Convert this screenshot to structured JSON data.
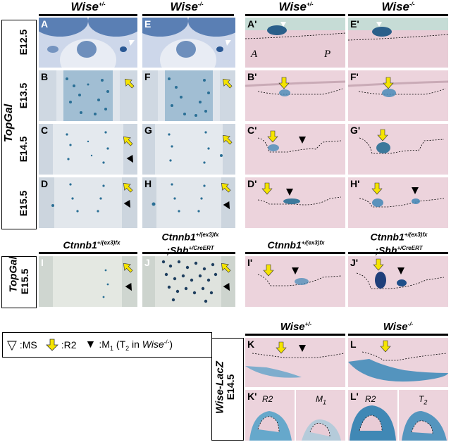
{
  "headers": {
    "wise_het": "Wise",
    "wise_het_sup": "+/-",
    "wise_ko": "Wise",
    "wise_ko_sup": "-/-",
    "ctnnb1": "Ctnnb1",
    "ctnnb1_sup": "+/(ex3)fx",
    "ctnnb1_shh_line1": "Ctnnb1",
    "ctnnb1_shh_line1_sup": "+/(ex3)fx",
    "ctnnb1_shh_line2": ";Shh",
    "ctnnb1_shh_line2_sup": "+/CreERT"
  },
  "row_labels": {
    "topgal_main": "TopGal",
    "e125": "E12.5",
    "e135": "E13.5",
    "e145": "E14.5",
    "e155": "E15.5",
    "topgal_2": "TopGal",
    "e155_b": "E15.5",
    "wise_lacz": "Wise-LacZ",
    "e145_b": "E14.5"
  },
  "panel_labels": {
    "A": "A",
    "B": "B",
    "C": "C",
    "D": "D",
    "E": "E",
    "F": "F",
    "G": "G",
    "H": "H",
    "A2": "A'",
    "B2": "B'",
    "C2": "C'",
    "D2": "D'",
    "E2": "E'",
    "F2": "F'",
    "G2": "G'",
    "H2": "H'",
    "I": "I",
    "J": "J",
    "I2": "I'",
    "J2": "J'",
    "K": "K",
    "L": "L",
    "K2": "K'",
    "L2": "L'"
  },
  "orientation": {
    "anterior": "A",
    "posterior": "P"
  },
  "inset_labels": {
    "r2": "R2",
    "m1": "M",
    "m1_sub": "1",
    "r2b": "R2",
    "t2": "T",
    "t2_sub": "2"
  },
  "legend": {
    "ms_symbol": "▽",
    "ms_text": ":MS",
    "r2_text": ":R2",
    "m1_symbol": "▼",
    "m1_text": ":M",
    "m1_sub": "1",
    "m1_paren": " (T",
    "m1_paren_sub": "2",
    "m1_paren_in": " in ",
    "m1_wise": "Wise",
    "m1_wise_sup": "-/-",
    "m1_close": ")"
  },
  "colors": {
    "stain_blue": "#2a6f95",
    "tissue_pink": "#e8c9d2",
    "arrow_yellow": "#f5e400",
    "whole_mount": "#dfe3ea"
  }
}
